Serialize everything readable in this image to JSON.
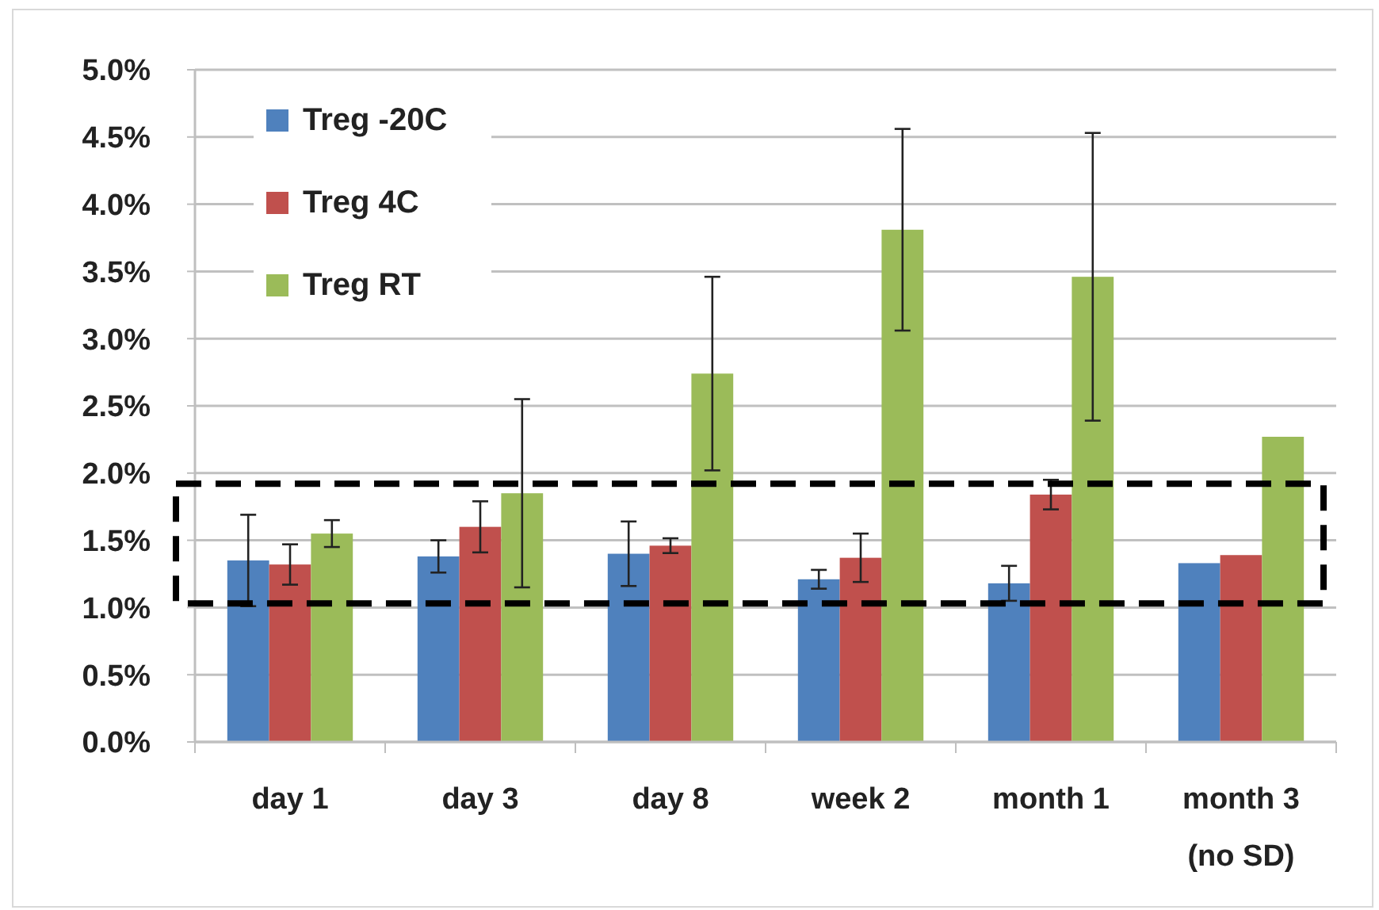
{
  "chart_data": {
    "type": "bar",
    "categories": [
      "day 1",
      "day 3",
      "day 8",
      "week 2",
      "month 1",
      "month 3\n(no SD)"
    ],
    "series": [
      {
        "name": "Treg -20C",
        "color": "#4f81bd",
        "values": [
          1.35,
          1.38,
          1.4,
          1.21,
          1.18,
          1.33
        ],
        "errors": [
          0.34,
          0.12,
          0.24,
          0.07,
          0.13,
          null
        ]
      },
      {
        "name": "Treg 4C",
        "color": "#c0504d",
        "values": [
          1.32,
          1.6,
          1.46,
          1.37,
          1.84,
          1.39
        ],
        "errors": [
          0.15,
          0.19,
          0.055,
          0.18,
          0.11,
          null
        ]
      },
      {
        "name": "Treg RT",
        "color": "#9bbb59",
        "values": [
          1.55,
          1.85,
          2.74,
          3.81,
          3.46,
          2.27
        ],
        "errors": [
          0.1,
          0.7,
          0.72,
          0.75,
          1.07,
          null
        ]
      }
    ],
    "ylim": [
      0,
      5
    ],
    "yticks": [
      {
        "value": 0,
        "label": "0.0%"
      },
      {
        "value": 0.5,
        "label": "0.5%"
      },
      {
        "value": 1,
        "label": "1.0%"
      },
      {
        "value": 1.5,
        "label": "1.5%"
      },
      {
        "value": 2,
        "label": "2.0%"
      },
      {
        "value": 2.5,
        "label": "2.5%"
      },
      {
        "value": 3,
        "label": "3.0%"
      },
      {
        "value": 3.5,
        "label": "3.5%"
      },
      {
        "value": 4,
        "label": "4.0%"
      },
      {
        "value": 4.5,
        "label": "4.5%"
      },
      {
        "value": 5,
        "label": "5.0%"
      }
    ],
    "grid": "y",
    "legend": "top left"
  }
}
